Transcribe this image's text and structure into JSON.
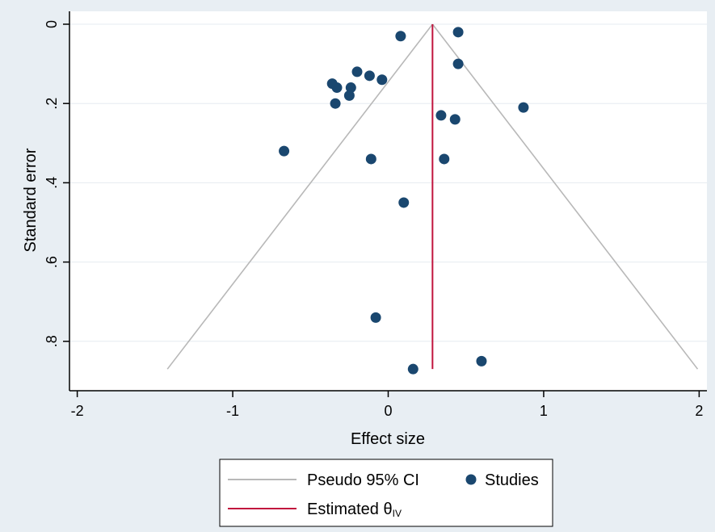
{
  "chart_data": {
    "type": "scatter",
    "title": "",
    "xlabel": "Effect size",
    "ylabel": "Standard error",
    "xlim": [
      -2.05,
      2.05
    ],
    "ylim": [
      0,
      0.89
    ],
    "y_reversed": true,
    "x_ticks": [
      -2,
      -1,
      0,
      1,
      2
    ],
    "x_tick_labels": [
      "-2",
      "-1",
      "0",
      "1",
      "2"
    ],
    "y_ticks": [
      0,
      0.2,
      0.4,
      0.6,
      0.8
    ],
    "y_tick_labels": [
      "0",
      ".2",
      ".4",
      ".6",
      ".8"
    ],
    "grid": true,
    "legend_position": "bottom",
    "estimate": 0.285,
    "ci_max_se": 0.87,
    "series": [
      {
        "name": "Studies",
        "color": "#1a476f",
        "points": [
          {
            "x": 0.08,
            "y": 0.03
          },
          {
            "x": 0.45,
            "y": 0.02
          },
          {
            "x": 0.45,
            "y": 0.1
          },
          {
            "x": -0.2,
            "y": 0.12
          },
          {
            "x": -0.12,
            "y": 0.13
          },
          {
            "x": -0.04,
            "y": 0.14
          },
          {
            "x": -0.36,
            "y": 0.15
          },
          {
            "x": -0.33,
            "y": 0.16
          },
          {
            "x": -0.24,
            "y": 0.16
          },
          {
            "x": -0.25,
            "y": 0.18
          },
          {
            "x": -0.34,
            "y": 0.2
          },
          {
            "x": 0.87,
            "y": 0.21
          },
          {
            "x": 0.34,
            "y": 0.23
          },
          {
            "x": 0.43,
            "y": 0.24
          },
          {
            "x": -0.67,
            "y": 0.32
          },
          {
            "x": -0.11,
            "y": 0.34
          },
          {
            "x": 0.36,
            "y": 0.34
          },
          {
            "x": 0.1,
            "y": 0.45
          },
          {
            "x": -0.08,
            "y": 0.74
          },
          {
            "x": 0.6,
            "y": 0.85
          },
          {
            "x": 0.16,
            "y": 0.87
          }
        ]
      },
      {
        "name": "Pseudo 95% CI",
        "color": "#b8b8b8",
        "kind": "funnel-lines"
      },
      {
        "name": "Estimated θ",
        "subscript": "IV",
        "color": "#c1143d",
        "kind": "vertical-line"
      }
    ]
  },
  "legend": {
    "ci_label": "Pseudo 95% CI",
    "studies_label": "Studies",
    "estimate_label": "Estimated θ",
    "estimate_sub": "IV"
  },
  "colors": {
    "page_bg": "#e8eef3",
    "plot_bg": "#ffffff",
    "grid": "#e6ebf0",
    "axis": "#000000"
  }
}
